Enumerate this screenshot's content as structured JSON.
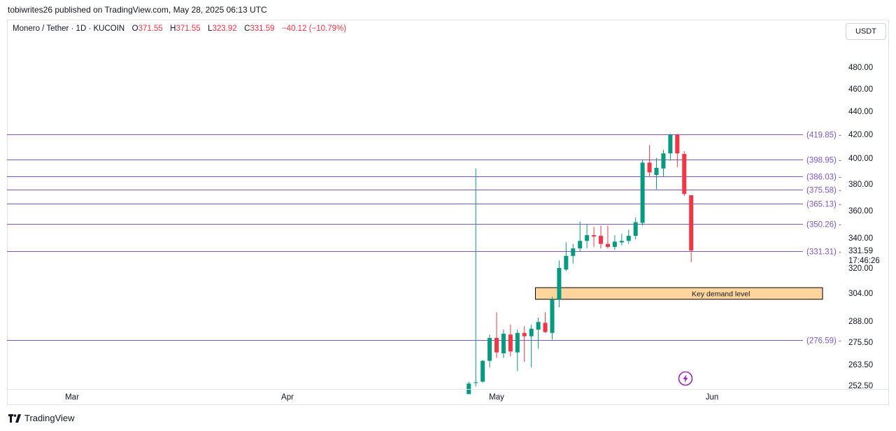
{
  "publisher_line": "tobiwrites26 published on TradingView.com, May 28, 2025 06:13 UTC",
  "symbol": "Monero / Tether · 1D · KUCOIN",
  "ohlc": {
    "open_label": "O",
    "open": "371.55",
    "high_label": "H",
    "high": "371.55",
    "low_label": "L",
    "low": "323.92",
    "close_label": "C",
    "close": "331.59",
    "change": "−40.12 (−10.79%)"
  },
  "currency_button": "USDT",
  "brand": "TradingView",
  "colors": {
    "up": "#089981",
    "down": "#f23645",
    "level_line": "#7e57c2",
    "level_text": "#7e57c2",
    "zone_fill": "#ffd59e",
    "zone_border": "#000000"
  },
  "chart_data": {
    "type": "candlestick",
    "title": "Monero / Tether · 1D · KUCOIN",
    "x_axis": {
      "ticks": [
        "Mar",
        "Apr",
        "May",
        "Jun"
      ]
    },
    "y_axis": {
      "ticks": [
        "480.00",
        "460.00",
        "440.00",
        "420.00",
        "400.00",
        "380.00",
        "360.00",
        "340.00",
        "320.00",
        "304.00",
        "288.00",
        "275.50",
        "263.50",
        "252.50"
      ],
      "last_price": "331.59",
      "countdown": "17:46:26"
    },
    "horizontal_levels": [
      {
        "value": 419.85,
        "label": "(419.85) -"
      },
      {
        "value": 398.95,
        "label": "(398.95) -"
      },
      {
        "value": 386.03,
        "label": "(386.03) -"
      },
      {
        "value": 375.58,
        "label": "(375.58) -"
      },
      {
        "value": 365.13,
        "label": "(365.13) -"
      },
      {
        "value": 350.26,
        "label": "(350.26) -"
      },
      {
        "value": 331.31,
        "label": "(331.31) -"
      },
      {
        "value": 276.59,
        "label": "(276.59) -"
      }
    ],
    "zone": {
      "label": "Key demand level",
      "top": 307.5,
      "bottom": 300.5,
      "start_date": "May 7"
    },
    "candles": [
      {
        "d": "Apr 27",
        "o": 248.0,
        "h": 254.5,
        "l": 248.0,
        "c": 253.5
      },
      {
        "d": "Apr 28",
        "o": 254.0,
        "h": 392.0,
        "l": 252.0,
        "c": 254.2
      },
      {
        "d": "Apr 29",
        "o": 254.5,
        "h": 266.0,
        "l": 254.0,
        "c": 265.5
      },
      {
        "d": "Apr 30",
        "o": 265.5,
        "h": 280.0,
        "l": 262.0,
        "c": 278.0
      },
      {
        "d": "May 1",
        "o": 278.0,
        "h": 293.0,
        "l": 267.0,
        "c": 270.0
      },
      {
        "d": "May 2",
        "o": 269.5,
        "h": 283.0,
        "l": 267.0,
        "c": 280.5
      },
      {
        "d": "May 3",
        "o": 280.0,
        "h": 286.0,
        "l": 268.0,
        "c": 270.5
      },
      {
        "d": "May 4",
        "o": 270.0,
        "h": 283.0,
        "l": 260.0,
        "c": 281.0
      },
      {
        "d": "May 5",
        "o": 281.0,
        "h": 285.0,
        "l": 265.0,
        "c": 279.0
      },
      {
        "d": "May 6",
        "o": 279.0,
        "h": 286.0,
        "l": 262.0,
        "c": 283.5
      },
      {
        "d": "May 7",
        "o": 283.0,
        "h": 290.0,
        "l": 272.0,
        "c": 287.5
      },
      {
        "d": "May 8",
        "o": 287.0,
        "h": 293.0,
        "l": 281.0,
        "c": 281.5
      },
      {
        "d": "May 9",
        "o": 281.0,
        "h": 302.0,
        "l": 277.0,
        "c": 300.5
      },
      {
        "d": "May 10",
        "o": 300.5,
        "h": 325.0,
        "l": 296.0,
        "c": 320.0
      },
      {
        "d": "May 11",
        "o": 319.0,
        "h": 337.0,
        "l": 318.0,
        "c": 328.0
      },
      {
        "d": "May 12",
        "o": 328.0,
        "h": 336.0,
        "l": 323.0,
        "c": 333.0
      },
      {
        "d": "May 13",
        "o": 333.0,
        "h": 352.0,
        "l": 331.0,
        "c": 338.0
      },
      {
        "d": "May 14",
        "o": 338.0,
        "h": 350.0,
        "l": 333.0,
        "c": 342.0
      },
      {
        "d": "May 15",
        "o": 342.0,
        "h": 348.0,
        "l": 334.0,
        "c": 341.0
      },
      {
        "d": "May 16",
        "o": 341.5,
        "h": 349.0,
        "l": 333.0,
        "c": 336.0
      },
      {
        "d": "May 17",
        "o": 336.0,
        "h": 349.0,
        "l": 333.0,
        "c": 334.0
      },
      {
        "d": "May 18",
        "o": 334.0,
        "h": 342.0,
        "l": 332.0,
        "c": 337.5
      },
      {
        "d": "May 19",
        "o": 337.0,
        "h": 343.0,
        "l": 335.0,
        "c": 338.0
      },
      {
        "d": "May 20",
        "o": 338.0,
        "h": 346.0,
        "l": 336.0,
        "c": 341.5
      },
      {
        "d": "May 21",
        "o": 341.5,
        "h": 355.0,
        "l": 339.0,
        "c": 351.5
      },
      {
        "d": "May 22",
        "o": 351.0,
        "h": 399.0,
        "l": 349.0,
        "c": 396.5
      },
      {
        "d": "May 23",
        "o": 396.5,
        "h": 411.0,
        "l": 386.0,
        "c": 389.0
      },
      {
        "d": "May 24",
        "o": 387.0,
        "h": 400.0,
        "l": 376.0,
        "c": 392.5
      },
      {
        "d": "May 25",
        "o": 392.0,
        "h": 407.0,
        "l": 386.0,
        "c": 404.0
      },
      {
        "d": "May 26",
        "o": 404.0,
        "h": 420.5,
        "l": 398.0,
        "c": 419.5
      },
      {
        "d": "May 27",
        "o": 419.5,
        "h": 420.5,
        "l": 393.0,
        "c": 404.0
      },
      {
        "d": "May 28",
        "o": 403.5,
        "h": 406.0,
        "l": 371.0,
        "c": 372.5
      },
      {
        "d": "May 29",
        "o": 371.55,
        "h": 371.55,
        "l": 323.92,
        "c": 331.59
      }
    ]
  }
}
